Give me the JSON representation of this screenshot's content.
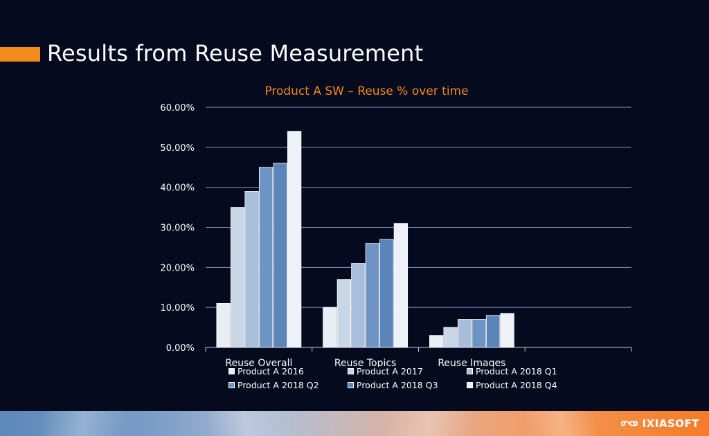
{
  "slide": {
    "title": "Results from Reuse Measurement"
  },
  "colors": {
    "accent": "#f28a1c",
    "background": "#050a1e",
    "chart_title": "#f28a1c"
  },
  "chart_data": {
    "type": "bar",
    "title": "Product A SW – Reuse % over time",
    "categories": [
      "Reuse Overall",
      "Reuse Topics",
      "Reuse Images"
    ],
    "ylim": [
      0,
      60
    ],
    "yticks": [
      "0.00%",
      "10.00%",
      "20.00%",
      "30.00%",
      "40.00%",
      "50.00%",
      "60.00%"
    ],
    "grid": true,
    "legend_position": "bottom",
    "series": [
      {
        "name": "Product A 2016",
        "color": "#e9edf4",
        "values": [
          11,
          10,
          3
        ]
      },
      {
        "name": "Product A 2017",
        "color": "#c9d6e6",
        "values": [
          35,
          17,
          5
        ]
      },
      {
        "name": "Product A 2018 Q1",
        "color": "#a9bedb",
        "values": [
          39,
          21,
          7
        ]
      },
      {
        "name": "Product A 2018 Q2",
        "color": "#6e94c3",
        "values": [
          45,
          26,
          7
        ]
      },
      {
        "name": "Product A 2018 Q3",
        "color": "#5b84b8",
        "values": [
          46,
          27,
          8
        ]
      },
      {
        "name": "Product A 2018 Q4",
        "color": "#eef2f8",
        "values": [
          54,
          31,
          8.5
        ]
      }
    ]
  },
  "footer": {
    "logo_text": "IXIASOFT"
  }
}
